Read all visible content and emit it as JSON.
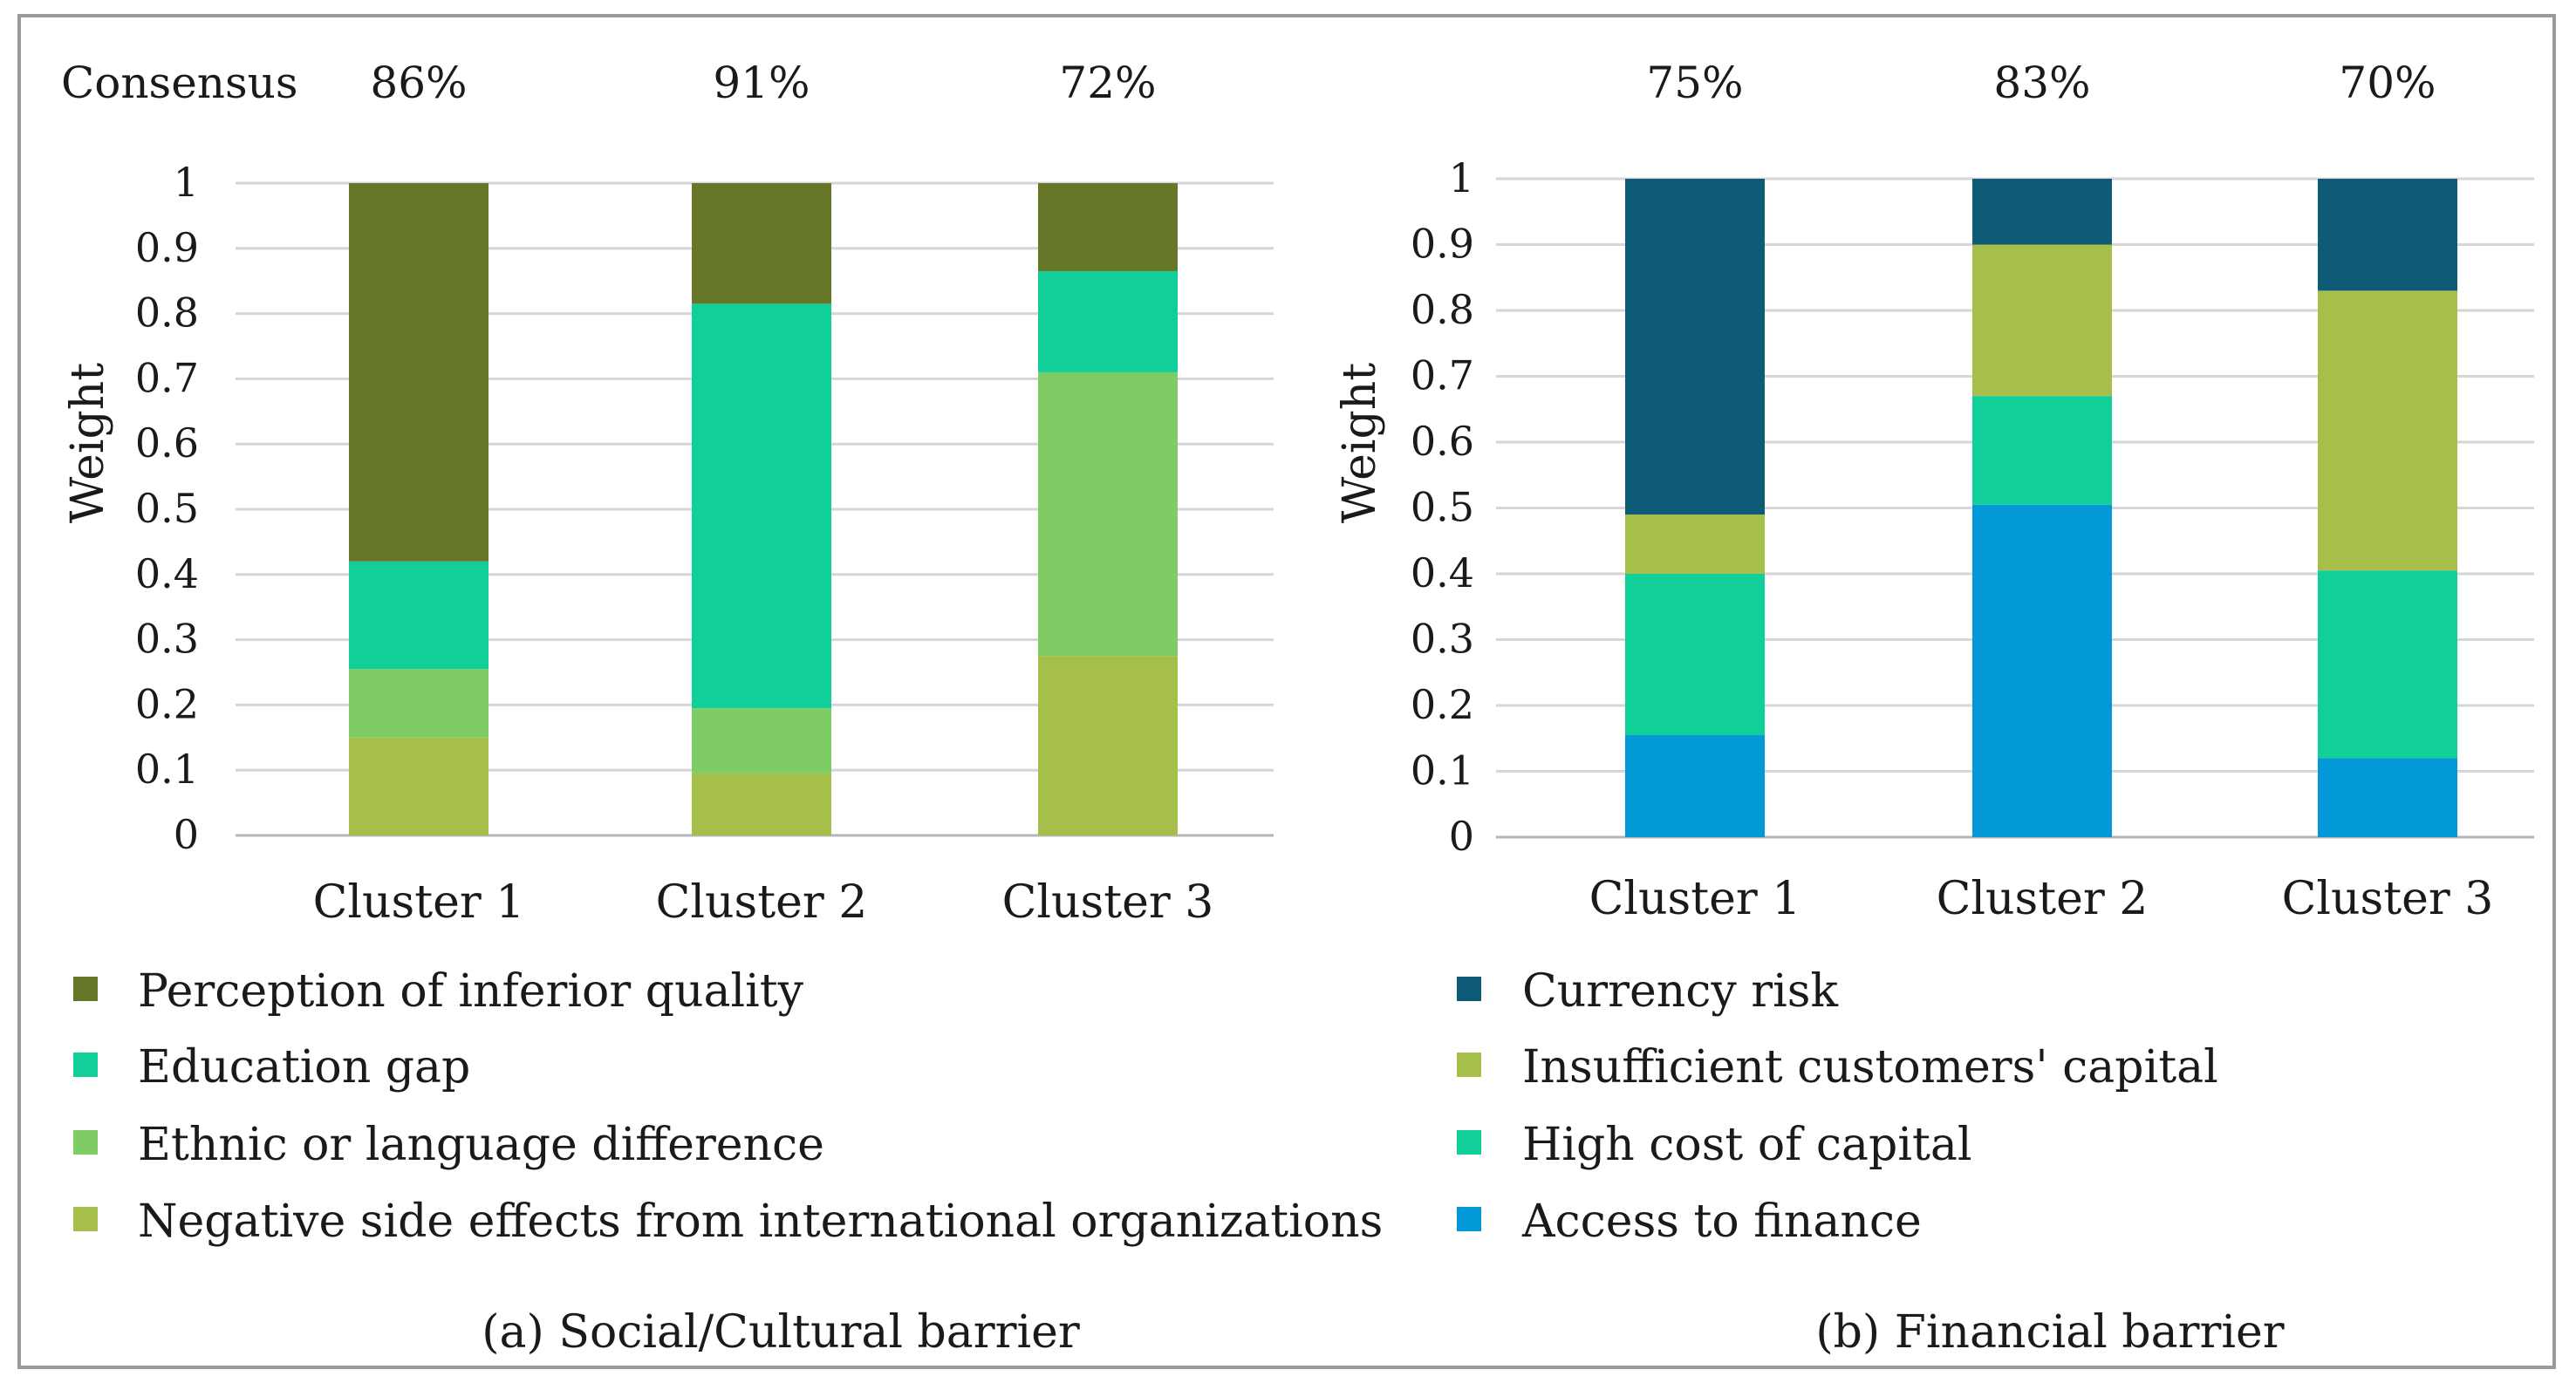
{
  "chart_data": [
    {
      "type": "bar",
      "stacked": true,
      "title": "(a) Social/Cultural barrier",
      "consensus_label": "Consensus",
      "consensus": [
        "86%",
        "91%",
        "72%"
      ],
      "categories": [
        "Cluster 1",
        "Cluster 2",
        "Cluster 3"
      ],
      "ylabel": "Weight",
      "xlabel": "",
      "ylim": [
        0,
        1
      ],
      "yticks": [
        "0",
        "0.1",
        "0.2",
        "0.3",
        "0.4",
        "0.5",
        "0.6",
        "0.7",
        "0.8",
        "0.9",
        "1"
      ],
      "grid": true,
      "series": [
        {
          "name": "Negative side effects from international organizations",
          "color": "#a6bf4b",
          "values": [
            0.15,
            0.095,
            0.275
          ]
        },
        {
          "name": "Ethnic or language difference",
          "color": "#7fcc67",
          "values": [
            0.105,
            0.1,
            0.435
          ]
        },
        {
          "name": "Education gap",
          "color": "#12cf9a",
          "values": [
            0.165,
            0.62,
            0.155
          ]
        },
        {
          "name": "Perception of inferior quality",
          "color": "#67772a",
          "values": [
            0.58,
            0.185,
            0.135
          ]
        }
      ],
      "legend_order": [
        "Perception of inferior quality",
        "Education gap",
        "Ethnic or language difference",
        "Negative side effects from international organizations"
      ]
    },
    {
      "type": "bar",
      "stacked": true,
      "title": "(b) Financial barrier",
      "consensus": [
        "75%",
        "83%",
        "70%"
      ],
      "categories": [
        "Cluster 1",
        "Cluster 2",
        "Cluster 3"
      ],
      "ylabel": "Weight",
      "xlabel": "",
      "ylim": [
        0,
        1
      ],
      "yticks": [
        "0",
        "0.1",
        "0.2",
        "0.3",
        "0.4",
        "0.5",
        "0.6",
        "0.7",
        "0.8",
        "0.9",
        "1"
      ],
      "grid": true,
      "series": [
        {
          "name": "Access to finance",
          "color": "#0398d8",
          "values": [
            0.155,
            0.505,
            0.12
          ]
        },
        {
          "name": "High  cost of capital",
          "color": "#12cf9a",
          "values": [
            0.245,
            0.165,
            0.285
          ]
        },
        {
          "name": "Insufficient customers' capital",
          "color": "#a6bf4b",
          "values": [
            0.09,
            0.23,
            0.425
          ]
        },
        {
          "name": "Currency risk",
          "color": "#0e5b78",
          "values": [
            0.51,
            0.1,
            0.17
          ]
        }
      ],
      "legend_order": [
        "Currency risk",
        "Insufficient customers' capital",
        "High  cost of capital",
        "Access to finance"
      ]
    }
  ]
}
